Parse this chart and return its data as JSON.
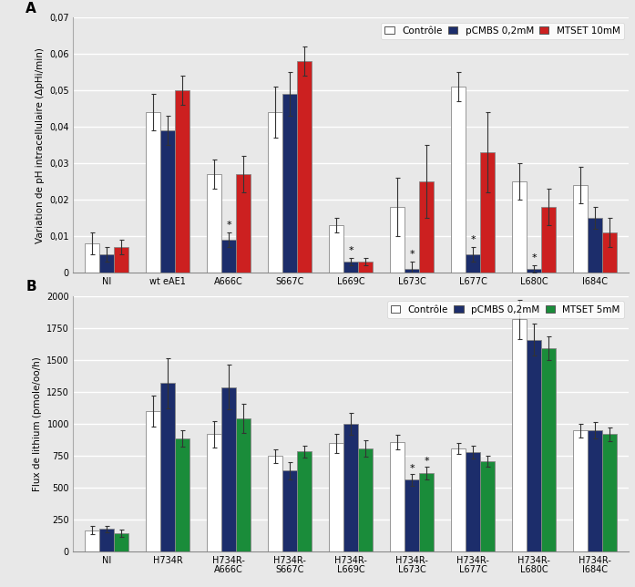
{
  "panel_A": {
    "categories": [
      "NI",
      "wt eAE1",
      "A666C",
      "S667C",
      "L669C",
      "L673C",
      "L677C",
      "L680C",
      "I684C"
    ],
    "controle": [
      0.008,
      0.044,
      0.027,
      0.044,
      0.013,
      0.018,
      0.051,
      0.025,
      0.024
    ],
    "pCMBS": [
      0.005,
      0.039,
      0.009,
      0.049,
      0.003,
      0.001,
      0.005,
      0.001,
      0.015
    ],
    "MTSET": [
      0.007,
      0.05,
      0.027,
      0.058,
      0.003,
      0.025,
      0.033,
      0.018,
      0.011
    ],
    "controle_err": [
      0.003,
      0.005,
      0.004,
      0.007,
      0.002,
      0.008,
      0.004,
      0.005,
      0.005
    ],
    "pCMBS_err": [
      0.002,
      0.004,
      0.002,
      0.006,
      0.001,
      0.002,
      0.002,
      0.001,
      0.003
    ],
    "MTSET_err": [
      0.002,
      0.004,
      0.005,
      0.004,
      0.001,
      0.01,
      0.011,
      0.005,
      0.004
    ],
    "star_pCMBS": [
      false,
      false,
      true,
      false,
      true,
      true,
      true,
      true,
      false
    ],
    "ylabel": "Variation de pH intracellulaire (ΔpHi/min)",
    "ylim": [
      0,
      0.07
    ],
    "yticks": [
      0,
      0.01,
      0.02,
      0.03,
      0.04,
      0.05,
      0.06,
      0.07
    ],
    "ytick_labels": [
      "0",
      "0,01",
      "0,02",
      "0,03",
      "0,04",
      "0,05",
      "0,06",
      "0,07"
    ],
    "legend_labels": [
      "Contrôle",
      "pCMBS 0,2mM",
      "MTSET 10mM"
    ],
    "colors": [
      "#ffffff",
      "#1c2d6b",
      "#cc2020"
    ],
    "title_label": "A"
  },
  "panel_B": {
    "categories": [
      "NI",
      "H734R",
      "H734R-\nA666C",
      "H734R-\nS667C",
      "H734R-\nL669C",
      "H734R-\nL673C",
      "H734R-\nL677C",
      "H734R-\nL680C",
      "H734R-\nI684C"
    ],
    "controle": [
      170,
      1100,
      920,
      750,
      850,
      860,
      810,
      1820,
      950
    ],
    "pCMBS": [
      178,
      1320,
      1290,
      635,
      1000,
      565,
      780,
      1660,
      950
    ],
    "MTSET": [
      145,
      890,
      1045,
      785,
      810,
      615,
      710,
      1595,
      920
    ],
    "controle_err": [
      35,
      120,
      100,
      55,
      75,
      55,
      45,
      155,
      55
    ],
    "pCMBS_err": [
      28,
      195,
      175,
      65,
      85,
      45,
      48,
      125,
      65
    ],
    "MTSET_err": [
      28,
      65,
      115,
      48,
      65,
      48,
      45,
      95,
      55
    ],
    "star_pCMBS": [
      false,
      false,
      false,
      false,
      false,
      true,
      false,
      false,
      false
    ],
    "star_MTSET": [
      false,
      false,
      false,
      false,
      false,
      true,
      false,
      false,
      false
    ],
    "ylabel": "Flux de lithium (pmole/oo/h)",
    "ylim": [
      0,
      2000
    ],
    "yticks": [
      0,
      250,
      500,
      750,
      1000,
      1250,
      1500,
      1750,
      2000
    ],
    "ytick_labels": [
      "0",
      "250",
      "500",
      "750",
      "1000",
      "1250",
      "1500",
      "1750",
      "2000"
    ],
    "legend_labels": [
      "Contrôle",
      "pCMBS 0,2mM",
      "MTSET 5mM"
    ],
    "colors": [
      "#ffffff",
      "#1c2d6b",
      "#1a8c3a"
    ],
    "title_label": "B"
  },
  "bar_width": 0.24,
  "edge_color": "#888888",
  "background_color": "#e8e8e8",
  "plot_bg_color": "#e8e8e8",
  "grid_color": "#ffffff",
  "font_size": 7.5,
  "label_font_size": 7.5,
  "tick_font_size": 7
}
